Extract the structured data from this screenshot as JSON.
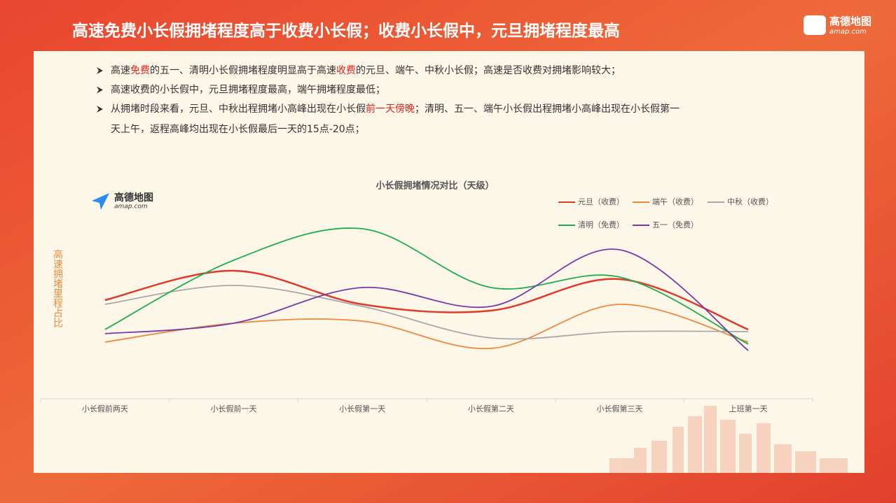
{
  "header": {
    "title": "高速免费小长假拥堵程度高于收费小长假；收费小长假中，元旦拥堵程度最高",
    "logo": "高德地图",
    "logo_sub": "amap.com"
  },
  "bullets": [
    {
      "lines": [
        [
          {
            "text": "高速"
          },
          {
            "text": "免费",
            "highlight": true
          },
          {
            "text": "的五一、清明小长假拥堵程度明显高于高速"
          },
          {
            "text": "收费",
            "highlight": true
          },
          {
            "text": "的元旦、端午、中秋小长假；高速是否收费对拥堵影响较大；"
          }
        ]
      ]
    },
    {
      "lines": [
        [
          {
            "text": "高速收费的小长假中，元旦拥堵程度最高，端午拥堵程度最低；"
          }
        ]
      ]
    },
    {
      "lines": [
        [
          {
            "text": "从拥堵时段来看，元旦、中秋出程拥堵小高峰出现在小长假"
          },
          {
            "text": "前一天傍晚",
            "highlight": true
          },
          {
            "text": "；清明、五一、端午小长假出程拥堵小高峰出现在小长假第一"
          }
        ],
        [
          {
            "text": "天上午，返程高峰均出现在小长假最后一天的15点-20点；"
          }
        ]
      ]
    }
  ],
  "chart_logo": {
    "name": "高德地图",
    "sub": "amap.com"
  },
  "chart_data": {
    "type": "line",
    "title": "小长假拥堵情况对比（天级）",
    "y_label": "高速拥堵里程占比",
    "categories": [
      "小长假前两天",
      "小长假前一天",
      "小长假第一天",
      "小长假第二天",
      "小长假第三天",
      "上班第一天"
    ],
    "ylim": [
      0,
      100
    ],
    "smooth": true,
    "series": [
      {
        "name": "元旦（收费）",
        "color": "#e03a2a",
        "values": [
          47,
          61,
          45,
          42,
          57,
          33
        ]
      },
      {
        "name": "端午（收费）",
        "color": "#ef8a3c",
        "values": [
          27,
          36,
          37,
          24,
          45,
          27
        ]
      },
      {
        "name": "中秋（收费）",
        "color": "#a8a8a8",
        "values": [
          45,
          54,
          44,
          29,
          32,
          32
        ]
      },
      {
        "name": "清明（免费）",
        "color": "#1fae4f",
        "values": [
          33,
          66,
          81,
          53,
          58,
          26
        ]
      },
      {
        "name": "五一（免费）",
        "color": "#7a3aa5",
        "values": [
          31,
          36,
          53,
          44,
          71,
          23
        ]
      }
    ]
  }
}
